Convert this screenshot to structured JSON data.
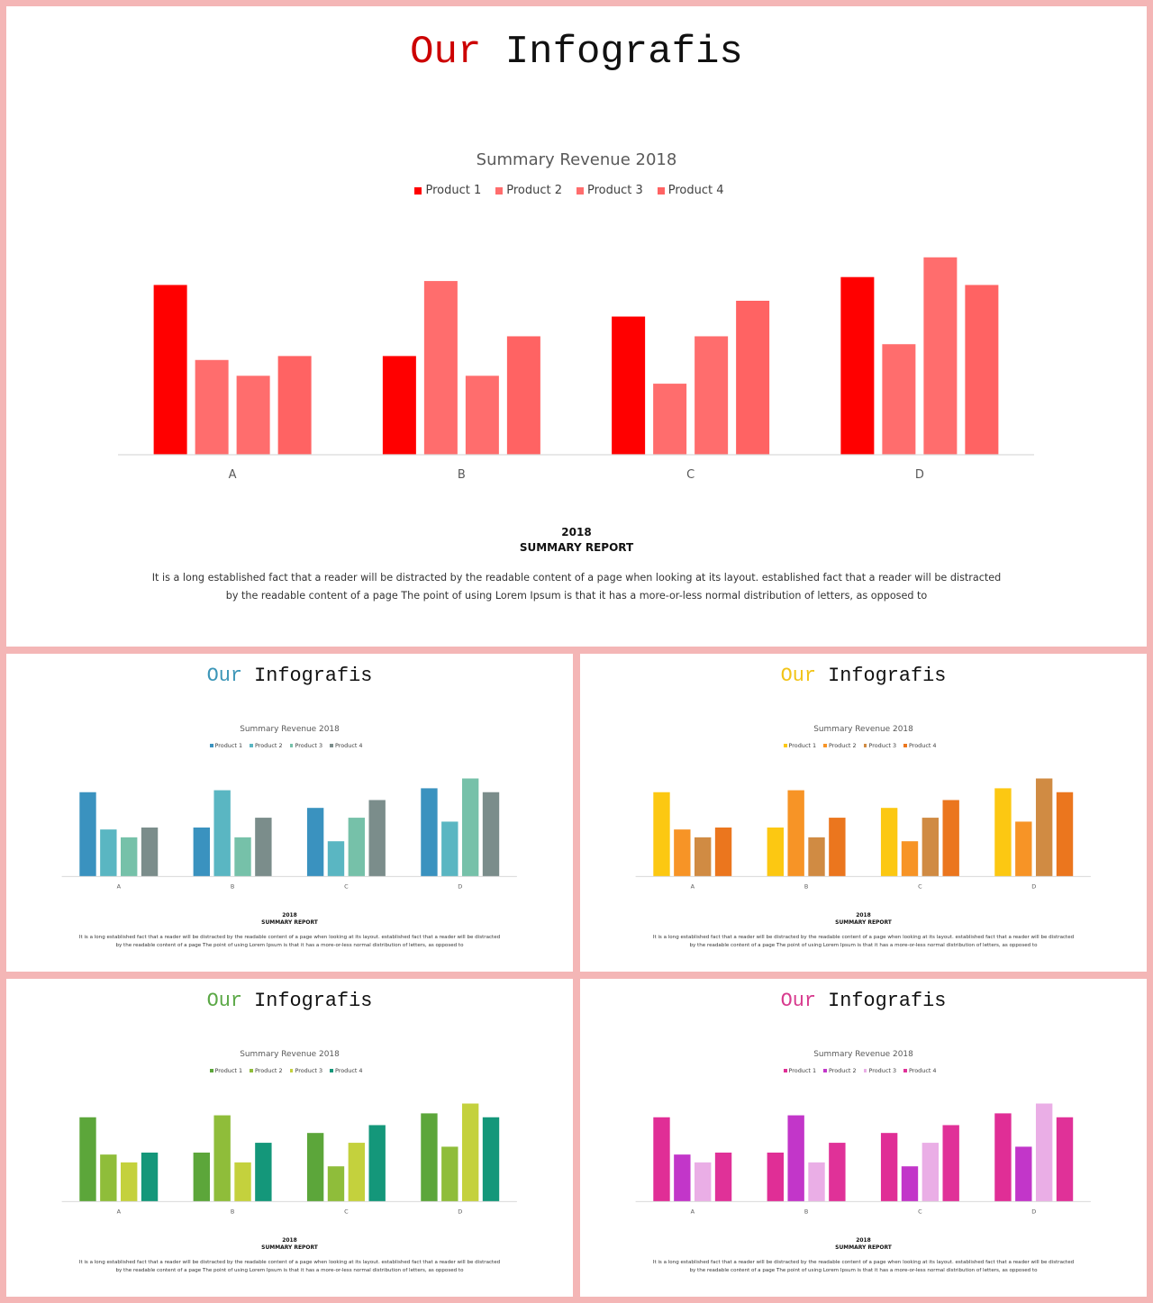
{
  "slides": [
    {
      "title_accent": "Our",
      "title_rest": " Infografis",
      "report_year": "2018",
      "report_title": "SUMMARY REPORT",
      "report_text": "It is a long established fact that a reader will be distracted by the readable content of a page when looking at its layout. established fact that a reader will be distracted by the readable content of a page The point of using Lorem Ipsum is that it has a more-or-less normal distribution of letters, as opposed to",
      "theme": {
        "accent": "#cc0000",
        "series_colors": [
          "#ff0000",
          "#ff6d6d",
          "#ff6d6d",
          "#ff6363"
        ]
      },
      "chart_data": {
        "type": "bar",
        "title": "Summary Revenue 2018",
        "categories": [
          "A",
          "B",
          "C",
          "D"
        ],
        "series": [
          {
            "name": "Product 1",
            "values": [
              4.3,
              2.5,
              3.5,
              4.5
            ]
          },
          {
            "name": "Product 2",
            "values": [
              2.4,
              4.4,
              1.8,
              2.8
            ]
          },
          {
            "name": "Product 3",
            "values": [
              2.0,
              2.0,
              3.0,
              5.0
            ]
          },
          {
            "name": "Product 4",
            "values": [
              2.5,
              3.0,
              3.9,
              4.3
            ]
          }
        ],
        "ylim": [
          0,
          5.2
        ],
        "legend": "top",
        "grid": false
      }
    },
    {
      "title_accent": "Our",
      "title_rest": " Infografis",
      "report_year": "2018",
      "report_title": "SUMMARY REPORT",
      "report_text": "It is a long established fact that a reader will be distracted by the readable content of a page when looking at its layout. established fact that a reader will be distracted by the readable content of a page The point of using Lorem Ipsum is that it has a more-or-less normal distribution of letters, as opposed to",
      "theme": {
        "accent": "#3c96b8",
        "series_colors": [
          "#3a92bf",
          "#5ab6c2",
          "#76c1a9",
          "#7b8d8b"
        ]
      },
      "chart_data": {
        "type": "bar",
        "title": "Summary Revenue 2018",
        "categories": [
          "A",
          "B",
          "C",
          "D"
        ],
        "series": [
          {
            "name": "Product 1",
            "values": [
              4.3,
              2.5,
              3.5,
              4.5
            ]
          },
          {
            "name": "Product 2",
            "values": [
              2.4,
              4.4,
              1.8,
              2.8
            ]
          },
          {
            "name": "Product 3",
            "values": [
              2.0,
              2.0,
              3.0,
              5.0
            ]
          },
          {
            "name": "Product 4",
            "values": [
              2.5,
              3.0,
              3.9,
              4.3
            ]
          }
        ],
        "ylim": [
          0,
          5.2
        ],
        "legend": "top",
        "grid": false
      }
    },
    {
      "title_accent": "Our",
      "title_rest": " Infografis",
      "report_year": "2018",
      "report_title": "SUMMARY REPORT",
      "report_text": "It is a long established fact that a reader will be distracted by the readable content of a page when looking at its layout. established fact that a reader will be distracted by the readable content of a page The point of using Lorem Ipsum is that it has a more-or-less normal distribution of letters, as opposed to",
      "theme": {
        "accent": "#f2c418",
        "series_colors": [
          "#fcc812",
          "#f79426",
          "#d08b43",
          "#eb761e"
        ]
      },
      "chart_data": {
        "type": "bar",
        "title": "Summary Revenue 2018",
        "categories": [
          "A",
          "B",
          "C",
          "D"
        ],
        "series": [
          {
            "name": "Product 1",
            "values": [
              4.3,
              2.5,
              3.5,
              4.5
            ]
          },
          {
            "name": "Product 2",
            "values": [
              2.4,
              4.4,
              1.8,
              2.8
            ]
          },
          {
            "name": "Product 3",
            "values": [
              2.0,
              2.0,
              3.0,
              5.0
            ]
          },
          {
            "name": "Product 4",
            "values": [
              2.5,
              3.0,
              3.9,
              4.3
            ]
          }
        ],
        "ylim": [
          0,
          5.2
        ],
        "legend": "top",
        "grid": false
      }
    },
    {
      "title_accent": "Our",
      "title_rest": " Infografis",
      "report_year": "2018",
      "report_title": "SUMMARY REPORT",
      "report_text": "It is a long established fact that a reader will be distracted by the readable content of a page when looking at its layout. established fact that a reader will be distracted by the readable content of a page The point of using Lorem Ipsum is that it has a more-or-less normal distribution of letters, as opposed to",
      "theme": {
        "accent": "#5ba846",
        "series_colors": [
          "#5ca63a",
          "#8fbd3a",
          "#c4d13d",
          "#14977a"
        ]
      },
      "chart_data": {
        "type": "bar",
        "title": "Summary Revenue 2018",
        "categories": [
          "A",
          "B",
          "C",
          "D"
        ],
        "series": [
          {
            "name": "Product 1",
            "values": [
              4.3,
              2.5,
              3.5,
              4.5
            ]
          },
          {
            "name": "Product 2",
            "values": [
              2.4,
              4.4,
              1.8,
              2.8
            ]
          },
          {
            "name": "Product 3",
            "values": [
              2.0,
              2.0,
              3.0,
              5.0
            ]
          },
          {
            "name": "Product 4",
            "values": [
              2.5,
              3.0,
              3.9,
              4.3
            ]
          }
        ],
        "ylim": [
          0,
          5.2
        ],
        "legend": "top",
        "grid": false
      }
    },
    {
      "title_accent": "Our",
      "title_rest": " Infografis",
      "report_year": "2018",
      "report_title": "SUMMARY REPORT",
      "report_text": "It is a long established fact that a reader will be distracted by the readable content of a page when looking at its layout. established fact that a reader will be distracted by the readable content of a page The point of using Lorem Ipsum is that it has a more-or-less normal distribution of letters, as opposed to",
      "theme": {
        "accent": "#d83b8e",
        "series_colors": [
          "#e02e96",
          "#c236c9",
          "#eaaee6",
          "#e03198"
        ]
      },
      "chart_data": {
        "type": "bar",
        "title": "Summary Revenue 2018",
        "categories": [
          "A",
          "B",
          "C",
          "D"
        ],
        "series": [
          {
            "name": "Product 1",
            "values": [
              4.3,
              2.5,
              3.5,
              4.5
            ]
          },
          {
            "name": "Product 2",
            "values": [
              2.4,
              4.4,
              1.8,
              2.8
            ]
          },
          {
            "name": "Product 3",
            "values": [
              2.0,
              2.0,
              3.0,
              5.0
            ]
          },
          {
            "name": "Product 4",
            "values": [
              2.5,
              3.0,
              3.9,
              4.3
            ]
          }
        ],
        "ylim": [
          0,
          5.2
        ],
        "legend": "top",
        "grid": false
      }
    }
  ]
}
